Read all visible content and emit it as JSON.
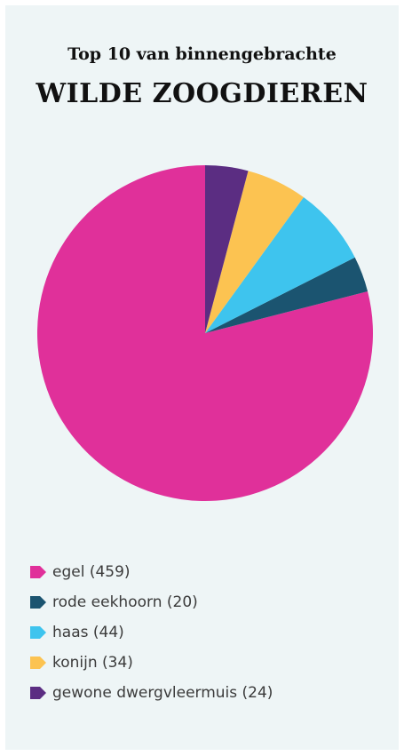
{
  "chart_data": {
    "type": "pie",
    "title": "WILDE ZOOGDIEREN",
    "subtitle": "Top 10 van binnengebrachte",
    "series": [
      {
        "label": "egel",
        "value": 459,
        "color": "#e0309a",
        "legend": "egel (459)"
      },
      {
        "label": "rode eekhoorn",
        "value": 20,
        "color": "#1b5470",
        "legend": "rode eekhoorn (20)"
      },
      {
        "label": "haas",
        "value": 44,
        "color": "#3ec4ee",
        "legend": "haas (44)"
      },
      {
        "label": "konijn",
        "value": 34,
        "color": "#fcc351",
        "legend": "konijn (34)"
      },
      {
        "label": "gewone dwergvleermuis",
        "value": 24,
        "color": "#5b2d82",
        "legend": "gewone dwergvleermuis (24)"
      }
    ],
    "legend_position": "bottom-left"
  }
}
